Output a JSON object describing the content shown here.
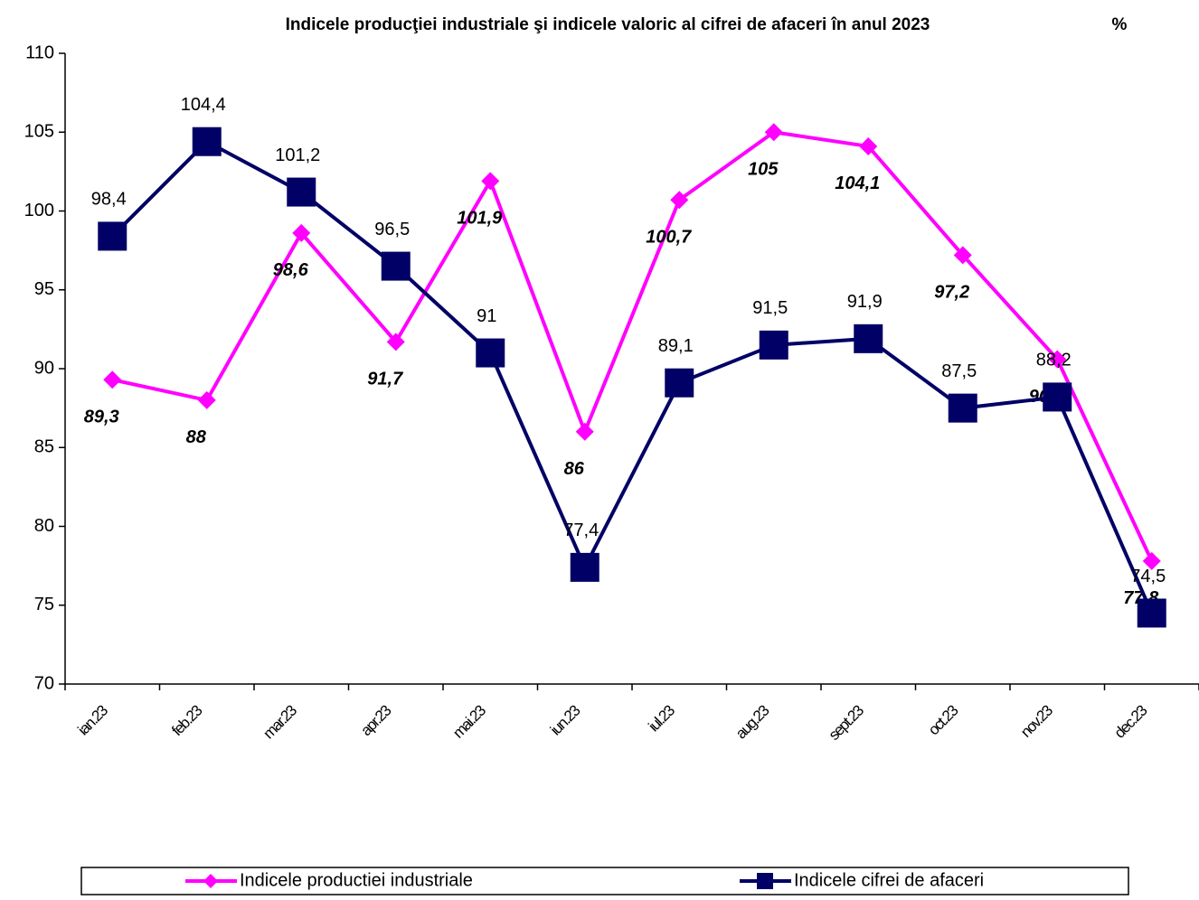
{
  "chart_data": {
    "type": "line",
    "title": "Indicele producţiei industriale şi indicele valoric al cifrei de afaceri în anul 2023",
    "unit_label": "%",
    "categories": [
      "ian.23",
      "feb.23",
      "mar.23",
      "apr.23",
      "mai.23",
      "iun.23",
      "iul.23",
      "aug.23",
      "sept.23",
      "oct.23",
      "nov.23",
      "dec.23"
    ],
    "series": [
      {
        "name": "Indicele productiei industriale",
        "color": "#ff00ff",
        "marker": "diamond",
        "values": [
          89.3,
          88,
          98.6,
          91.7,
          101.9,
          86,
          100.7,
          105,
          104.1,
          97.2,
          90.6,
          77.8
        ],
        "value_labels": [
          "89,3",
          "88",
          "98,6",
          "91,7",
          "101,9",
          "86",
          "100,7",
          "105",
          "104,1",
          "97,2",
          "90,6",
          "77,8"
        ]
      },
      {
        "name": "Indicele cifrei de afaceri",
        "color": "#000066",
        "marker": "square",
        "values": [
          98.4,
          104.4,
          101.2,
          96.5,
          91,
          77.4,
          89.1,
          91.5,
          91.9,
          87.5,
          88.2,
          74.5
        ],
        "value_labels": [
          "98,4",
          "104,4",
          "101,2",
          "96,5",
          "91",
          "77,4",
          "89,1",
          "91,5",
          "91,9",
          "87,5",
          "88,2",
          "74,5"
        ]
      }
    ],
    "ylim": [
      70,
      110
    ],
    "yticks": [
      70,
      75,
      80,
      85,
      90,
      95,
      100,
      105,
      110
    ],
    "grid": false,
    "legend": "bottom"
  }
}
